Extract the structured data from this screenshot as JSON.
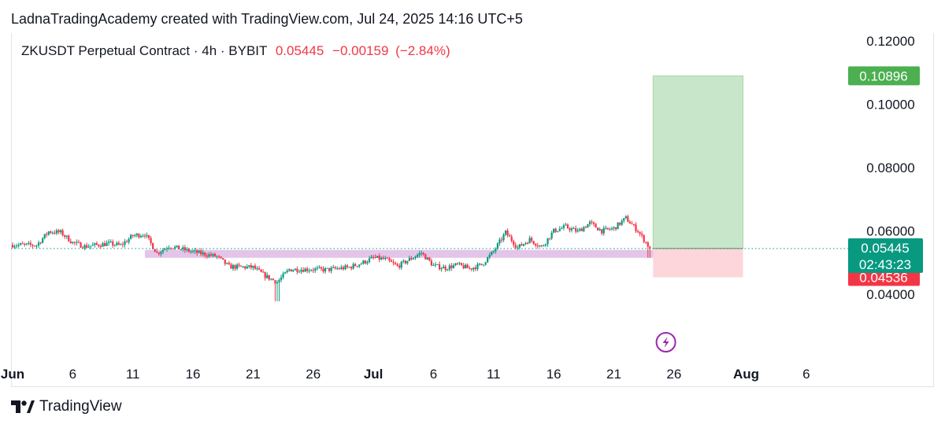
{
  "header": {
    "credit": "LadnaTradingAcademy created with TradingView.com, Jul 24, 2025 14:16 UTC+5"
  },
  "legend": {
    "symbol": "ZKUSDT Perpetual Contract · 4h · BYBIT",
    "last": "0.05445",
    "change": "−0.00159",
    "change_pct": "(−2.84%)"
  },
  "footer": {
    "brand": "TradingView"
  },
  "colors": {
    "up": "#089981",
    "down": "#f23645",
    "target_fill": "#c8e6c9",
    "stop_fill": "#fcd6da",
    "zone": "#e1bee7",
    "target_label": "#4caf50",
    "stop_label": "#f23645",
    "price_label": "#089981",
    "event_icon": "#9c27b0"
  },
  "chart_data": {
    "type": "candlestick",
    "interval": "4h",
    "x_ticks": [
      {
        "label": "Jun",
        "date": "2025-06-01",
        "bold": true
      },
      {
        "label": "6",
        "date": "2025-06-06"
      },
      {
        "label": "11",
        "date": "2025-06-11"
      },
      {
        "label": "16",
        "date": "2025-06-16"
      },
      {
        "label": "21",
        "date": "2025-06-21"
      },
      {
        "label": "26",
        "date": "2025-06-26"
      },
      {
        "label": "Jul",
        "date": "2025-07-01",
        "bold": true
      },
      {
        "label": "6",
        "date": "2025-07-06"
      },
      {
        "label": "11",
        "date": "2025-07-11"
      },
      {
        "label": "16",
        "date": "2025-07-16"
      },
      {
        "label": "21",
        "date": "2025-07-21"
      },
      {
        "label": "26",
        "date": "2025-07-26"
      },
      {
        "label": "Aug",
        "date": "2025-08-01",
        "bold": true
      },
      {
        "label": "6",
        "date": "2025-08-06"
      }
    ],
    "y_ticks": [
      "0.12000",
      "0.10000",
      "0.08000",
      "0.06000",
      "0.04000"
    ],
    "y_range": [
      0.0381,
      0.1218
    ],
    "close_path": [
      [
        "2025-06-01",
        0.0556
      ],
      [
        "2025-06-03",
        0.0555
      ],
      [
        "2025-06-04",
        0.0598
      ],
      [
        "2025-06-05",
        0.0595
      ],
      [
        "2025-06-06",
        0.0563
      ],
      [
        "2025-06-07",
        0.0551
      ],
      [
        "2025-06-09",
        0.056
      ],
      [
        "2025-06-10",
        0.0554
      ],
      [
        "2025-06-11",
        0.0585
      ],
      [
        "2025-06-12",
        0.059
      ],
      [
        "2025-06-13",
        0.053
      ],
      [
        "2025-06-14",
        0.0552
      ],
      [
        "2025-06-16",
        0.0534
      ],
      [
        "2025-06-18",
        0.0519
      ],
      [
        "2025-06-19",
        0.0487
      ],
      [
        "2025-06-21",
        0.0485
      ],
      [
        "2025-06-22",
        0.0458
      ],
      [
        "2025-06-23",
        0.0438
      ],
      [
        "2025-06-24",
        0.0478
      ],
      [
        "2025-06-26",
        0.0479
      ],
      [
        "2025-06-27",
        0.0477
      ],
      [
        "2025-06-29",
        0.0485
      ],
      [
        "2025-06-30",
        0.0498
      ],
      [
        "2025-07-01",
        0.0515
      ],
      [
        "2025-07-02",
        0.051
      ],
      [
        "2025-07-03",
        0.0488
      ],
      [
        "2025-07-04",
        0.051
      ],
      [
        "2025-07-05",
        0.0531
      ],
      [
        "2025-07-06",
        0.049
      ],
      [
        "2025-07-07",
        0.0483
      ],
      [
        "2025-07-08",
        0.0493
      ],
      [
        "2025-07-09",
        0.0481
      ],
      [
        "2025-07-10",
        0.0493
      ],
      [
        "2025-07-11",
        0.0535
      ],
      [
        "2025-07-12",
        0.0595
      ],
      [
        "2025-07-13",
        0.0547
      ],
      [
        "2025-07-14",
        0.0573
      ],
      [
        "2025-07-15",
        0.0549
      ],
      [
        "2025-07-16",
        0.06
      ],
      [
        "2025-07-17",
        0.0613
      ],
      [
        "2025-07-18",
        0.0598
      ],
      [
        "2025-07-19",
        0.0625
      ],
      [
        "2025-07-20",
        0.06
      ],
      [
        "2025-07-21",
        0.0608
      ],
      [
        "2025-07-22",
        0.064
      ],
      [
        "2025-07-23",
        0.06
      ],
      [
        "2025-07-24",
        0.0545
      ]
    ],
    "lows": [
      [
        "2025-06-23",
        0.0378
      ],
      [
        "2025-07-24",
        0.0515
      ]
    ],
    "last_price": 0.05445,
    "countdown": "02:43:23",
    "zones": [
      {
        "name": "support",
        "from": "2025-06-12",
        "to": "2025-07-25",
        "low": 0.0515,
        "high": 0.054
      }
    ],
    "position": {
      "type": "long",
      "from": "2025-07-24",
      "to": "2025-08-01",
      "entry": 0.05445,
      "target": 0.10896,
      "stop": 0.04536,
      "target_label": "0.10896",
      "stop_label": "0.04536"
    },
    "event_date": "2025-07-25"
  }
}
